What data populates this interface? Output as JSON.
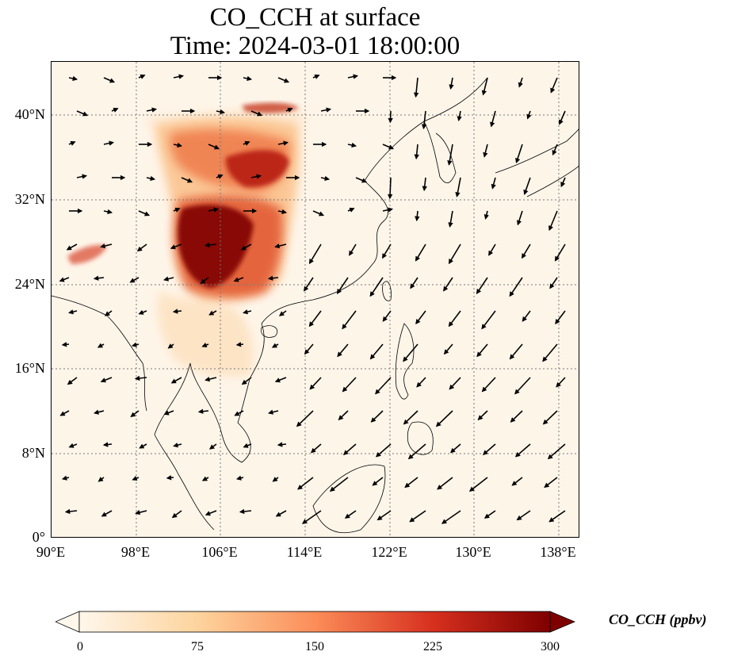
{
  "title": "CO_CCH at surface",
  "time_label": "Time: 2024-03-01 18:00:00",
  "map": {
    "variable": "CO_CCH",
    "lon_range": [
      90,
      140
    ],
    "lat_range": [
      0,
      45
    ],
    "lat_ticks": [
      "0°",
      "8°N",
      "16°N",
      "24°N",
      "32°N",
      "40°N"
    ],
    "lon_ticks": [
      "90°E",
      "98°E",
      "106°E",
      "114°E",
      "122°E",
      "130°E",
      "138°E"
    ],
    "gridlines": true,
    "overlay": "wind vectors"
  },
  "colorbar": {
    "label": "CO_CCH (ppbv)",
    "ticks": [
      "0",
      "75",
      "150",
      "225",
      "300"
    ],
    "min": 0,
    "max": 300,
    "extend": "both",
    "colormap": [
      "#fff7ec",
      "#fdd49e",
      "#fc8d59",
      "#d7301f",
      "#7f0000"
    ]
  }
}
